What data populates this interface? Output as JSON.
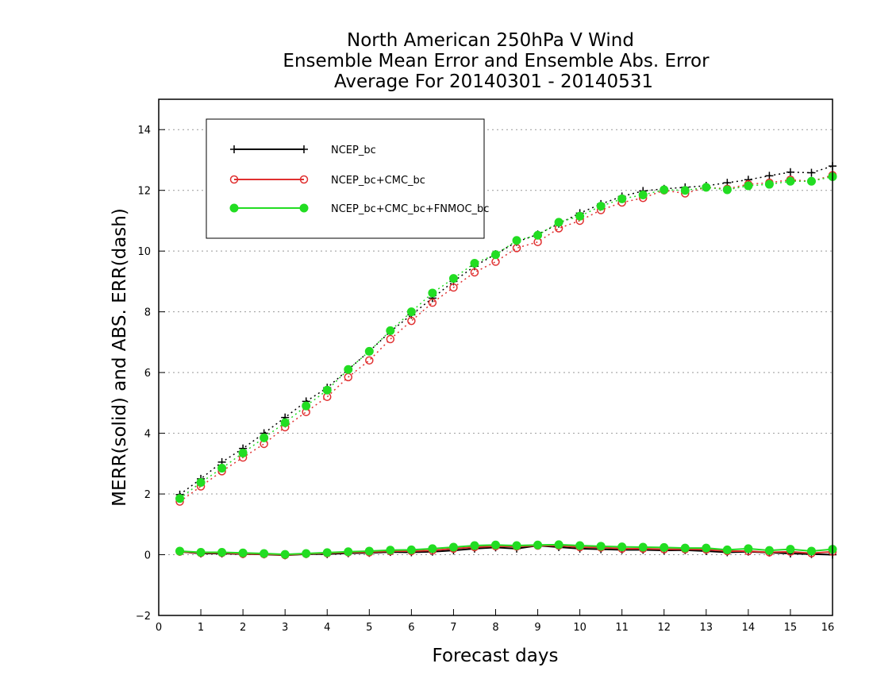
{
  "chart_data": {
    "type": "line",
    "title_lines": [
      "North American 250hPa V Wind",
      "Ensemble Mean Error and Ensemble Abs. Error",
      "Average For 20140301 - 20140531"
    ],
    "xlabel": "Forecast days",
    "ylabel": "MERR(solid) and ABS. ERR(dash)",
    "xlim": [
      0,
      16
    ],
    "ylim": [
      -2,
      15
    ],
    "xticks": [
      0,
      1,
      2,
      3,
      4,
      5,
      6,
      7,
      8,
      9,
      10,
      11,
      12,
      13,
      14,
      15,
      16
    ],
    "yticks": [
      -2,
      0,
      2,
      4,
      6,
      8,
      10,
      12,
      14
    ],
    "grid": "horizontal dotted",
    "legend_position": "upper-left",
    "x": [
      0.5,
      1,
      1.5,
      2,
      2.5,
      3,
      3.5,
      4,
      4.5,
      5,
      5.5,
      6,
      6.5,
      7,
      7.5,
      8,
      8.5,
      9,
      9.5,
      10,
      10.5,
      11,
      11.5,
      12,
      12.5,
      13,
      13.5,
      14,
      14.5,
      15,
      15.5,
      16
    ],
    "series": [
      {
        "name": "NCEP_bc",
        "color": "#000000",
        "marker": "plus",
        "abs_err": [
          1.98,
          2.5,
          3.05,
          3.5,
          4.0,
          4.52,
          5.05,
          5.5,
          6.1,
          6.7,
          7.35,
          7.9,
          8.45,
          9.0,
          9.5,
          9.9,
          10.3,
          10.55,
          10.9,
          11.25,
          11.55,
          11.8,
          11.98,
          12.05,
          12.1,
          12.15,
          12.25,
          12.35,
          12.48,
          12.6,
          12.58,
          12.8
        ],
        "mean_err": [
          0.1,
          0.04,
          0.04,
          0.02,
          0.01,
          -0.02,
          0.02,
          0.02,
          0.05,
          0.06,
          0.09,
          0.08,
          0.1,
          0.14,
          0.2,
          0.24,
          0.2,
          0.3,
          0.25,
          0.2,
          0.18,
          0.16,
          0.16,
          0.14,
          0.15,
          0.12,
          0.08,
          0.1,
          0.07,
          0.04,
          0.02,
          0.0
        ]
      },
      {
        "name": "NCEP_bc+CMC_bc",
        "color": "#e03030",
        "marker": "open-circle",
        "abs_err": [
          1.75,
          2.25,
          2.75,
          3.2,
          3.65,
          4.2,
          4.7,
          5.2,
          5.85,
          6.4,
          7.1,
          7.7,
          8.3,
          8.8,
          9.3,
          9.65,
          10.1,
          10.3,
          10.75,
          11.0,
          11.35,
          11.6,
          11.75,
          12.0,
          11.9,
          12.1,
          12.05,
          12.2,
          12.25,
          12.35,
          12.3,
          12.5
        ],
        "mean_err": [
          0.1,
          0.06,
          0.06,
          0.03,
          0.02,
          -0.01,
          0.03,
          0.05,
          0.08,
          0.08,
          0.12,
          0.12,
          0.14,
          0.2,
          0.25,
          0.28,
          0.27,
          0.3,
          0.3,
          0.25,
          0.24,
          0.2,
          0.2,
          0.18,
          0.18,
          0.17,
          0.12,
          0.12,
          0.08,
          0.1,
          0.05,
          0.1
        ]
      },
      {
        "name": "NCEP_bc+CMC_bc+FNMOC_bc",
        "color": "#22dd22",
        "marker": "filled-circle",
        "abs_err": [
          1.85,
          2.38,
          2.85,
          3.35,
          3.85,
          4.35,
          4.9,
          5.42,
          6.1,
          6.7,
          7.38,
          8.0,
          8.62,
          9.1,
          9.6,
          9.88,
          10.35,
          10.52,
          10.95,
          11.15,
          11.48,
          11.72,
          11.85,
          12.02,
          12.0,
          12.1,
          12.02,
          12.15,
          12.2,
          12.3,
          12.3,
          12.45
        ],
        "mean_err": [
          0.12,
          0.08,
          0.08,
          0.06,
          0.04,
          0.01,
          0.04,
          0.07,
          0.1,
          0.12,
          0.15,
          0.16,
          0.2,
          0.25,
          0.3,
          0.32,
          0.3,
          0.32,
          0.33,
          0.3,
          0.28,
          0.26,
          0.25,
          0.24,
          0.22,
          0.22,
          0.16,
          0.2,
          0.14,
          0.18,
          0.12,
          0.18
        ]
      }
    ]
  }
}
